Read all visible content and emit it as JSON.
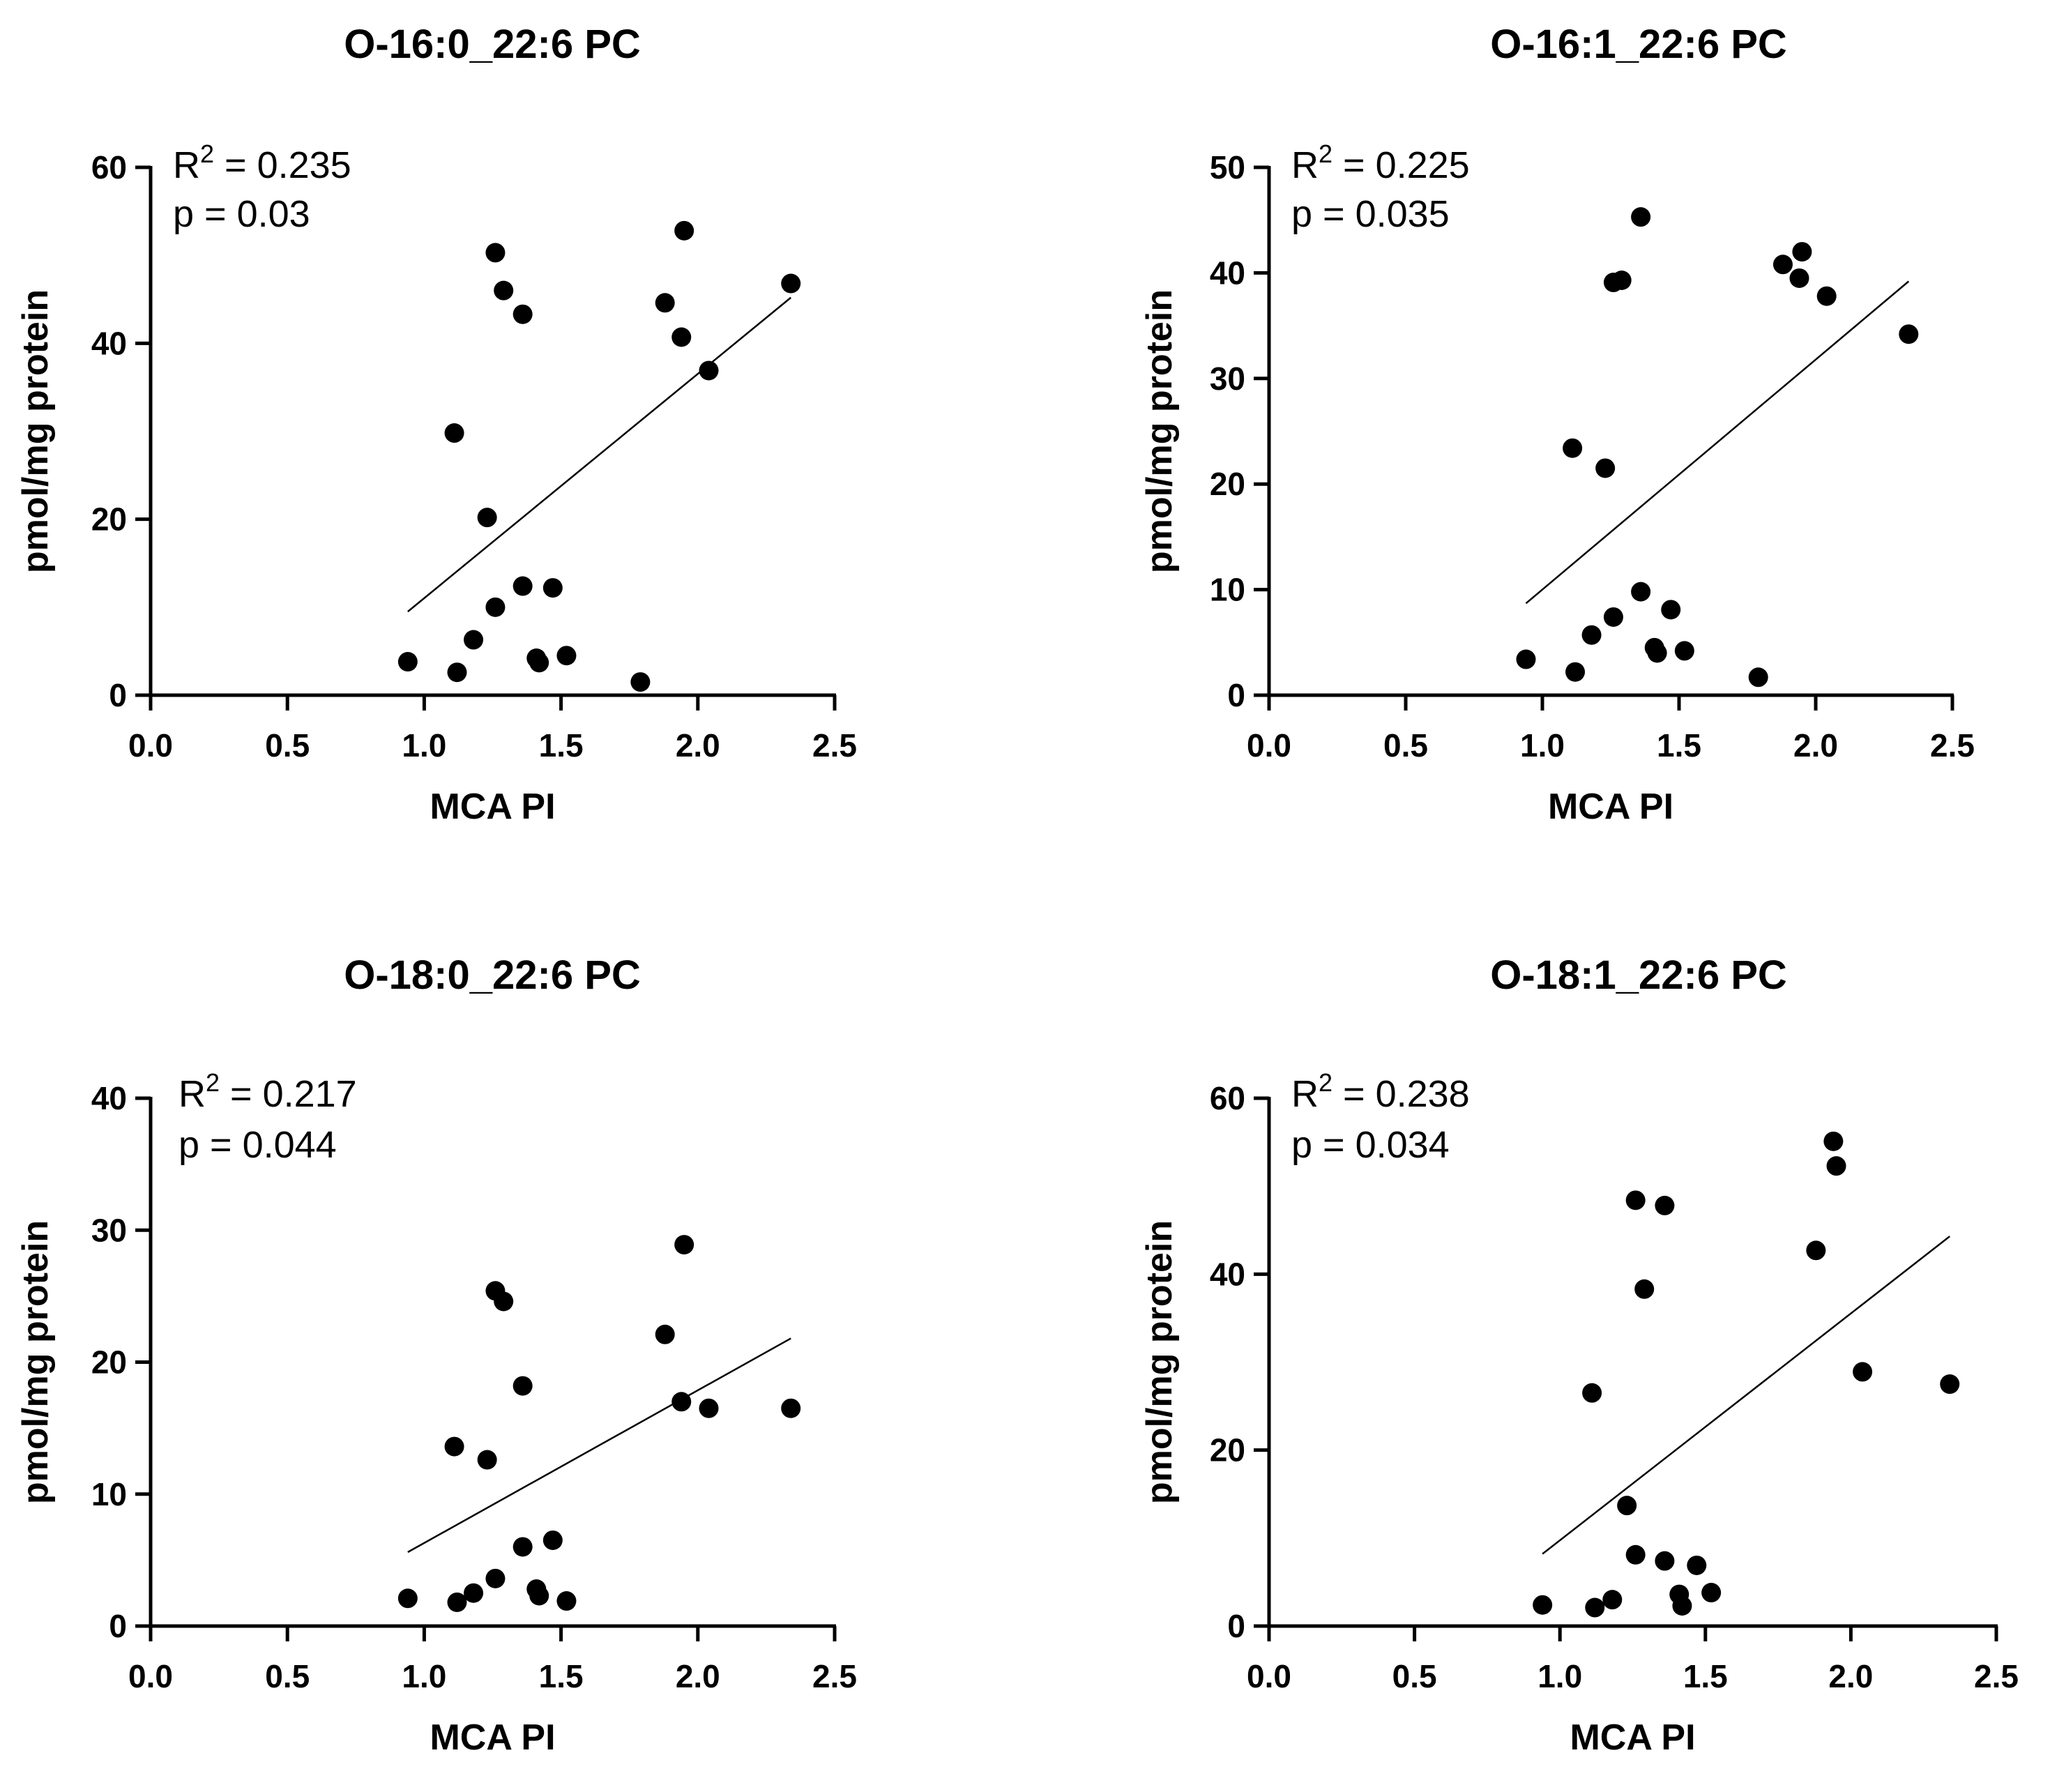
{
  "chart_data": [
    {
      "type": "scatter",
      "title": "O-16:0_22:6 PC",
      "xlabel": "MCA PI",
      "ylabel": "pmol/mg protein",
      "xlim": [
        0,
        2.5
      ],
      "ylim": [
        0,
        60
      ],
      "xticks": [
        "0.0",
        "0.5",
        "1.0",
        "1.5",
        "2.0",
        "2.5"
      ],
      "xtick_values": [
        0,
        0.5,
        1.0,
        1.5,
        2.0,
        2.5
      ],
      "yticks": [
        "0",
        "20",
        "40",
        "60"
      ],
      "ytick_values": [
        0,
        20,
        40,
        60
      ],
      "stat_r2_label": "R",
      "stat_r2_exp": "2",
      "stat_r2_value": " = 0.235",
      "stat_p": "p = 0.03",
      "fit_line": {
        "x": [
          0.94,
          2.34
        ],
        "y": [
          9.5,
          45.2
        ]
      },
      "points": [
        {
          "x": 0.94,
          "y": 3.8
        },
        {
          "x": 1.11,
          "y": 29.8
        },
        {
          "x": 1.12,
          "y": 2.6
        },
        {
          "x": 1.18,
          "y": 6.3
        },
        {
          "x": 1.23,
          "y": 20.2
        },
        {
          "x": 1.26,
          "y": 50.3
        },
        {
          "x": 1.26,
          "y": 10.0
        },
        {
          "x": 1.29,
          "y": 46.0
        },
        {
          "x": 1.36,
          "y": 43.3
        },
        {
          "x": 1.36,
          "y": 12.4
        },
        {
          "x": 1.41,
          "y": 4.2
        },
        {
          "x": 1.42,
          "y": 3.7
        },
        {
          "x": 1.47,
          "y": 12.2
        },
        {
          "x": 1.52,
          "y": 4.5
        },
        {
          "x": 1.79,
          "y": 1.5
        },
        {
          "x": 1.88,
          "y": 44.6
        },
        {
          "x": 1.94,
          "y": 40.7
        },
        {
          "x": 1.95,
          "y": 52.8
        },
        {
          "x": 2.04,
          "y": 36.9
        },
        {
          "x": 2.34,
          "y": 46.8
        }
      ]
    },
    {
      "type": "scatter",
      "title": "O-16:1_22:6 PC",
      "xlabel": "MCA PI",
      "ylabel": "pmol/mg protein",
      "xlim": [
        0,
        2.5
      ],
      "ylim": [
        0,
        50
      ],
      "xticks": [
        "0.0",
        "0.5",
        "1.0",
        "1.5",
        "2.0",
        "2.5"
      ],
      "xtick_values": [
        0,
        0.5,
        1.0,
        1.5,
        2.0,
        2.5
      ],
      "yticks": [
        "0",
        "10",
        "20",
        "30",
        "40",
        "50"
      ],
      "ytick_values": [
        0,
        10,
        20,
        30,
        40,
        50
      ],
      "stat_r2_label": "R",
      "stat_r2_exp": "2",
      "stat_r2_value": " = 0.225",
      "stat_p": "p = 0.035",
      "fit_line": {
        "x": [
          0.94,
          2.34
        ],
        "y": [
          8.7,
          39.2
        ]
      },
      "points": [
        {
          "x": 0.94,
          "y": 3.4
        },
        {
          "x": 1.11,
          "y": 23.4
        },
        {
          "x": 1.12,
          "y": 2.2
        },
        {
          "x": 1.18,
          "y": 5.7
        },
        {
          "x": 1.23,
          "y": 21.5
        },
        {
          "x": 1.26,
          "y": 39.1
        },
        {
          "x": 1.26,
          "y": 7.4
        },
        {
          "x": 1.29,
          "y": 39.3
        },
        {
          "x": 1.36,
          "y": 45.3
        },
        {
          "x": 1.36,
          "y": 9.8
        },
        {
          "x": 1.41,
          "y": 4.5
        },
        {
          "x": 1.42,
          "y": 4.0
        },
        {
          "x": 1.47,
          "y": 8.1
        },
        {
          "x": 1.52,
          "y": 4.2
        },
        {
          "x": 1.79,
          "y": 1.7
        },
        {
          "x": 1.88,
          "y": 40.8
        },
        {
          "x": 1.94,
          "y": 39.5
        },
        {
          "x": 1.95,
          "y": 42.0
        },
        {
          "x": 2.04,
          "y": 37.8
        },
        {
          "x": 2.34,
          "y": 34.2
        }
      ]
    },
    {
      "type": "scatter",
      "title": "O-18:0_22:6 PC",
      "xlabel": "MCA PI",
      "ylabel": "pmol/mg protein",
      "xlim": [
        0,
        2.5
      ],
      "ylim": [
        0,
        40
      ],
      "xticks": [
        "0.0",
        "0.5",
        "1.0",
        "1.5",
        "2.0",
        "2.5"
      ],
      "xtick_values": [
        0,
        0.5,
        1.0,
        1.5,
        2.0,
        2.5
      ],
      "yticks": [
        "0",
        "10",
        "20",
        "30",
        "40"
      ],
      "ytick_values": [
        0,
        10,
        20,
        30,
        40
      ],
      "stat_r2_label": "R",
      "stat_r2_exp": "2",
      "stat_r2_value": " = 0.217",
      "stat_p": "p = 0.044",
      "fit_line": {
        "x": [
          0.94,
          2.34
        ],
        "y": [
          5.6,
          21.8
        ]
      },
      "points": [
        {
          "x": 0.94,
          "y": 2.1
        },
        {
          "x": 1.11,
          "y": 13.6
        },
        {
          "x": 1.12,
          "y": 1.8
        },
        {
          "x": 1.18,
          "y": 2.5
        },
        {
          "x": 1.23,
          "y": 12.6
        },
        {
          "x": 1.26,
          "y": 25.4
        },
        {
          "x": 1.26,
          "y": 3.6
        },
        {
          "x": 1.29,
          "y": 24.6
        },
        {
          "x": 1.36,
          "y": 18.2
        },
        {
          "x": 1.36,
          "y": 6.0
        },
        {
          "x": 1.41,
          "y": 2.8
        },
        {
          "x": 1.42,
          "y": 2.3
        },
        {
          "x": 1.47,
          "y": 6.5
        },
        {
          "x": 1.52,
          "y": 1.9
        },
        {
          "x": 1.88,
          "y": 22.1
        },
        {
          "x": 1.94,
          "y": 17.0
        },
        {
          "x": 1.95,
          "y": 28.9
        },
        {
          "x": 2.04,
          "y": 16.5
        },
        {
          "x": 2.34,
          "y": 16.5
        }
      ]
    },
    {
      "type": "scatter",
      "title": "O-18:1_22:6 PC",
      "xlabel": "MCA PI",
      "ylabel": "pmol/mg protein",
      "xlim": [
        0,
        2.5
      ],
      "ylim": [
        0,
        60
      ],
      "xticks": [
        "0.0",
        "0.5",
        "1.0",
        "1.5",
        "2.0",
        "2.5"
      ],
      "xtick_values": [
        0,
        0.5,
        1.0,
        1.5,
        2.0,
        2.5
      ],
      "yticks": [
        "0",
        "20",
        "40",
        "60"
      ],
      "ytick_values": [
        0,
        20,
        40,
        60
      ],
      "stat_r2_label": "R",
      "stat_r2_exp": "2",
      "stat_r2_value": " = 0.238",
      "stat_p": "p = 0.034",
      "fit_line": {
        "x": [
          0.94,
          2.34
        ],
        "y": [
          8.2,
          44.3
        ]
      },
      "points": [
        {
          "x": 0.94,
          "y": 2.4
        },
        {
          "x": 1.11,
          "y": 26.5
        },
        {
          "x": 1.12,
          "y": 2.1
        },
        {
          "x": 1.18,
          "y": 3.0
        },
        {
          "x": 1.23,
          "y": 13.7
        },
        {
          "x": 1.26,
          "y": 48.4
        },
        {
          "x": 1.26,
          "y": 8.1
        },
        {
          "x": 1.29,
          "y": 38.3
        },
        {
          "x": 1.36,
          "y": 47.8
        },
        {
          "x": 1.36,
          "y": 7.4
        },
        {
          "x": 1.41,
          "y": 3.6
        },
        {
          "x": 1.42,
          "y": 2.3
        },
        {
          "x": 1.47,
          "y": 6.9
        },
        {
          "x": 1.52,
          "y": 3.8
        },
        {
          "x": 1.88,
          "y": 42.7
        },
        {
          "x": 1.94,
          "y": 55.1
        },
        {
          "x": 1.95,
          "y": 52.3
        },
        {
          "x": 2.04,
          "y": 28.9
        },
        {
          "x": 2.34,
          "y": 27.5
        }
      ]
    }
  ]
}
